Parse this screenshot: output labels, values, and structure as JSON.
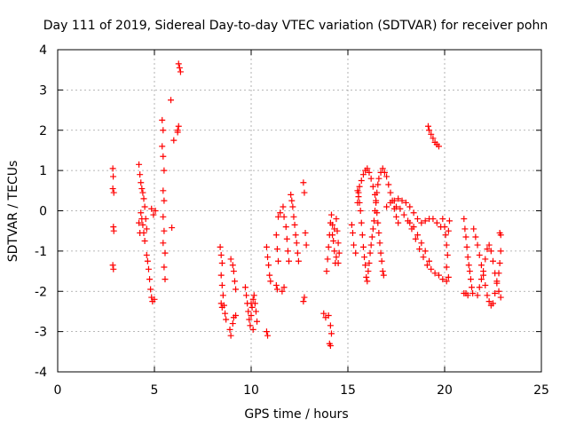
{
  "chart_data": {
    "type": "scatter",
    "title": "Day 111 of 2019, Sidereal Day-to-day VTEC variation (SDTVAR) for receiver pohn",
    "xlabel": "GPS time / hours",
    "ylabel": "SDTVAR / TECUs",
    "xlim": [
      0,
      25
    ],
    "ylim": [
      -4,
      4
    ],
    "xticks": [
      0,
      5,
      10,
      15,
      20,
      25
    ],
    "yticks": [
      -4,
      -3,
      -2,
      -1,
      0,
      1,
      2,
      3,
      4
    ],
    "grid": true,
    "marker": "+",
    "color": "#ff0000",
    "series": [
      {
        "name": "SDTVAR",
        "points": [
          [
            2.85,
            1.05
          ],
          [
            2.87,
            0.85
          ],
          [
            2.85,
            0.55
          ],
          [
            2.9,
            0.45
          ],
          [
            2.88,
            -0.4
          ],
          [
            2.9,
            -0.5
          ],
          [
            2.85,
            -1.35
          ],
          [
            2.88,
            -1.45
          ],
          [
            4.2,
            1.15
          ],
          [
            4.25,
            0.9
          ],
          [
            4.3,
            0.7
          ],
          [
            4.35,
            0.55
          ],
          [
            4.4,
            0.45
          ],
          [
            4.45,
            0.3
          ],
          [
            4.5,
            0.1
          ],
          [
            4.3,
            -0.05
          ],
          [
            4.35,
            -0.2
          ],
          [
            4.4,
            -0.35
          ],
          [
            4.45,
            -0.55
          ],
          [
            4.5,
            -0.75
          ],
          [
            4.6,
            -1.1
          ],
          [
            4.65,
            -1.25
          ],
          [
            4.7,
            -1.45
          ],
          [
            4.75,
            -1.7
          ],
          [
            4.8,
            -1.95
          ],
          [
            4.85,
            -2.15
          ],
          [
            4.9,
            -2.25
          ],
          [
            5.0,
            -2.2
          ],
          [
            4.85,
            0.05
          ],
          [
            4.95,
            -0.1
          ],
          [
            5.05,
            0.0
          ],
          [
            4.55,
            -0.2
          ],
          [
            4.6,
            -0.45
          ],
          [
            4.2,
            -0.3
          ],
          [
            4.25,
            -0.55
          ],
          [
            5.4,
            2.25
          ],
          [
            5.45,
            2.0
          ],
          [
            5.4,
            1.6
          ],
          [
            5.45,
            1.35
          ],
          [
            5.5,
            1.0
          ],
          [
            5.45,
            0.5
          ],
          [
            5.5,
            0.25
          ],
          [
            5.45,
            -0.15
          ],
          [
            5.5,
            -0.5
          ],
          [
            5.45,
            -0.8
          ],
          [
            5.55,
            -1.05
          ],
          [
            5.5,
            -1.4
          ],
          [
            5.55,
            -1.7
          ],
          [
            5.85,
            2.75
          ],
          [
            6.0,
            1.75
          ],
          [
            6.2,
            2.0
          ],
          [
            6.25,
            2.1
          ],
          [
            6.2,
            1.95
          ],
          [
            5.9,
            -0.42
          ],
          [
            6.25,
            3.65
          ],
          [
            6.3,
            3.55
          ],
          [
            6.35,
            3.45
          ],
          [
            8.4,
            -0.9
          ],
          [
            8.45,
            -1.1
          ],
          [
            8.5,
            -1.3
          ],
          [
            8.45,
            -1.6
          ],
          [
            8.5,
            -1.85
          ],
          [
            8.55,
            -2.1
          ],
          [
            8.6,
            -2.35
          ],
          [
            8.65,
            -2.55
          ],
          [
            8.7,
            -2.7
          ],
          [
            8.45,
            -2.3
          ],
          [
            8.5,
            -2.4
          ],
          [
            8.95,
            -1.2
          ],
          [
            9.05,
            -1.35
          ],
          [
            9.1,
            -1.5
          ],
          [
            9.15,
            -1.75
          ],
          [
            9.2,
            -1.95
          ],
          [
            8.9,
            -2.95
          ],
          [
            8.95,
            -3.1
          ],
          [
            9.05,
            -2.8
          ],
          [
            9.1,
            -2.65
          ],
          [
            9.2,
            -2.6
          ],
          [
            9.7,
            -1.9
          ],
          [
            9.75,
            -2.1
          ],
          [
            9.8,
            -2.3
          ],
          [
            9.85,
            -2.5
          ],
          [
            9.9,
            -2.7
          ],
          [
            9.95,
            -2.85
          ],
          [
            10.0,
            -2.6
          ],
          [
            10.05,
            -2.4
          ],
          [
            10.1,
            -2.2
          ],
          [
            10.15,
            -2.1
          ],
          [
            10.2,
            -2.3
          ],
          [
            10.25,
            -2.5
          ],
          [
            10.3,
            -2.75
          ],
          [
            10.1,
            -2.95
          ],
          [
            10.0,
            -2.3
          ],
          [
            10.8,
            -3.0
          ],
          [
            10.85,
            -3.1
          ],
          [
            10.8,
            -0.9
          ],
          [
            10.85,
            -1.15
          ],
          [
            10.9,
            -1.35
          ],
          [
            10.95,
            -1.6
          ],
          [
            11.0,
            -1.75
          ],
          [
            11.3,
            -0.6
          ],
          [
            11.35,
            -0.95
          ],
          [
            11.4,
            -1.25
          ],
          [
            11.3,
            -1.85
          ],
          [
            11.35,
            -1.95
          ],
          [
            11.6,
            -2.0
          ],
          [
            11.7,
            -1.9
          ],
          [
            11.4,
            -0.15
          ],
          [
            11.5,
            -0.05
          ],
          [
            11.65,
            0.1
          ],
          [
            11.7,
            -0.15
          ],
          [
            11.8,
            -0.4
          ],
          [
            11.85,
            -0.7
          ],
          [
            11.9,
            -1.0
          ],
          [
            11.95,
            -1.25
          ],
          [
            12.05,
            0.4
          ],
          [
            12.1,
            0.25
          ],
          [
            12.15,
            0.1
          ],
          [
            12.2,
            -0.15
          ],
          [
            12.25,
            -0.35
          ],
          [
            12.3,
            -0.6
          ],
          [
            12.35,
            -0.8
          ],
          [
            12.4,
            -1.05
          ],
          [
            12.45,
            -1.25
          ],
          [
            12.7,
            0.7
          ],
          [
            12.75,
            0.45
          ],
          [
            12.8,
            -0.55
          ],
          [
            12.85,
            -0.85
          ],
          [
            12.7,
            -2.25
          ],
          [
            12.75,
            -2.15
          ],
          [
            13.75,
            -2.55
          ],
          [
            13.85,
            -2.65
          ],
          [
            14.0,
            -2.6
          ],
          [
            14.1,
            -2.85
          ],
          [
            14.15,
            -3.05
          ],
          [
            14.05,
            -3.3
          ],
          [
            14.1,
            -3.35
          ],
          [
            13.9,
            -1.5
          ],
          [
            13.95,
            -1.2
          ],
          [
            14.0,
            -0.9
          ],
          [
            14.05,
            -0.6
          ],
          [
            14.1,
            -0.3
          ],
          [
            14.15,
            -0.1
          ],
          [
            14.2,
            -0.35
          ],
          [
            14.25,
            -0.75
          ],
          [
            14.3,
            -1.0
          ],
          [
            14.35,
            -1.3
          ],
          [
            14.4,
            -0.2
          ],
          [
            14.45,
            -0.5
          ],
          [
            14.5,
            -0.8
          ],
          [
            14.55,
            -1.05
          ],
          [
            14.5,
            -1.3
          ],
          [
            14.4,
            -1.15
          ],
          [
            14.3,
            -0.45
          ],
          [
            14.2,
            -0.6
          ],
          [
            15.2,
            -0.35
          ],
          [
            15.25,
            -0.55
          ],
          [
            15.3,
            -0.85
          ],
          [
            15.4,
            -1.05
          ],
          [
            15.5,
            0.5
          ],
          [
            15.55,
            0.35
          ],
          [
            15.6,
            0.2
          ],
          [
            15.65,
            0.0
          ],
          [
            15.7,
            -0.3
          ],
          [
            15.75,
            -0.6
          ],
          [
            15.8,
            -0.9
          ],
          [
            15.85,
            -1.15
          ],
          [
            15.9,
            -1.35
          ],
          [
            15.95,
            -1.65
          ],
          [
            16.0,
            -1.75
          ],
          [
            16.05,
            -1.5
          ],
          [
            16.1,
            -1.3
          ],
          [
            16.15,
            -1.05
          ],
          [
            16.2,
            -0.85
          ],
          [
            16.25,
            -0.65
          ],
          [
            16.3,
            -0.45
          ],
          [
            16.35,
            -0.25
          ],
          [
            16.4,
            0.0
          ],
          [
            16.45,
            0.25
          ],
          [
            16.5,
            0.45
          ],
          [
            16.55,
            0.65
          ],
          [
            16.6,
            0.8
          ],
          [
            16.7,
            0.95
          ],
          [
            16.8,
            1.05
          ],
          [
            16.9,
            0.95
          ],
          [
            17.0,
            0.85
          ],
          [
            17.1,
            0.65
          ],
          [
            17.2,
            0.45
          ],
          [
            17.3,
            0.25
          ],
          [
            17.4,
            0.05
          ],
          [
            17.5,
            -0.15
          ],
          [
            17.6,
            -0.3
          ],
          [
            15.5,
            0.2
          ],
          [
            15.55,
            0.45
          ],
          [
            15.6,
            0.6
          ],
          [
            15.7,
            0.75
          ],
          [
            15.8,
            0.9
          ],
          [
            15.9,
            1.0
          ],
          [
            16.0,
            1.05
          ],
          [
            16.1,
            0.95
          ],
          [
            16.2,
            0.8
          ],
          [
            16.3,
            0.6
          ],
          [
            16.4,
            0.4
          ],
          [
            16.45,
            0.2
          ],
          [
            16.5,
            -0.05
          ],
          [
            16.55,
            -0.3
          ],
          [
            16.6,
            -0.55
          ],
          [
            16.65,
            -0.8
          ],
          [
            16.7,
            -1.05
          ],
          [
            16.75,
            -1.25
          ],
          [
            16.8,
            -1.5
          ],
          [
            16.85,
            -1.6
          ],
          [
            17.0,
            0.1
          ],
          [
            17.2,
            0.2
          ],
          [
            17.4,
            0.25
          ],
          [
            17.6,
            0.3
          ],
          [
            17.8,
            0.25
          ],
          [
            18.0,
            0.2
          ],
          [
            18.2,
            0.1
          ],
          [
            18.4,
            -0.05
          ],
          [
            18.6,
            -0.2
          ],
          [
            18.8,
            -0.3
          ],
          [
            19.0,
            -0.25
          ],
          [
            19.2,
            -0.2
          ],
          [
            19.4,
            -0.2
          ],
          [
            19.6,
            -0.3
          ],
          [
            19.8,
            -0.4
          ],
          [
            17.5,
            0.1
          ],
          [
            17.7,
            0.05
          ],
          [
            17.9,
            -0.1
          ],
          [
            18.1,
            -0.25
          ],
          [
            18.3,
            -0.45
          ],
          [
            18.5,
            -0.7
          ],
          [
            18.7,
            -0.95
          ],
          [
            18.9,
            -1.15
          ],
          [
            19.1,
            -1.35
          ],
          [
            19.3,
            -1.45
          ],
          [
            19.5,
            -1.55
          ],
          [
            19.7,
            -1.6
          ],
          [
            19.9,
            -1.7
          ],
          [
            20.1,
            -1.75
          ],
          [
            20.2,
            -1.65
          ],
          [
            18.2,
            -0.3
          ],
          [
            18.4,
            -0.4
          ],
          [
            18.6,
            -0.6
          ],
          [
            18.8,
            -0.8
          ],
          [
            19.0,
            -1.0
          ],
          [
            19.2,
            -1.25
          ],
          [
            19.15,
            2.1
          ],
          [
            19.2,
            2.0
          ],
          [
            19.3,
            1.9
          ],
          [
            19.4,
            1.8
          ],
          [
            19.5,
            1.7
          ],
          [
            19.6,
            1.65
          ],
          [
            19.7,
            1.6
          ],
          [
            19.9,
            -0.2
          ],
          [
            20.0,
            -0.4
          ],
          [
            20.05,
            -0.6
          ],
          [
            20.1,
            -0.85
          ],
          [
            20.15,
            -1.1
          ],
          [
            20.2,
            -0.5
          ],
          [
            20.25,
            -0.25
          ],
          [
            20.1,
            -1.4
          ],
          [
            21.0,
            -0.2
          ],
          [
            21.05,
            -0.45
          ],
          [
            21.1,
            -0.65
          ],
          [
            21.15,
            -0.9
          ],
          [
            21.2,
            -1.15
          ],
          [
            21.25,
            -1.35
          ],
          [
            21.3,
            -1.5
          ],
          [
            21.35,
            -1.7
          ],
          [
            21.4,
            -1.9
          ],
          [
            21.45,
            -2.05
          ],
          [
            21.2,
            -2.1
          ],
          [
            21.1,
            -2.05
          ],
          [
            21.0,
            -2.05
          ],
          [
            21.5,
            -0.45
          ],
          [
            21.6,
            -0.65
          ],
          [
            21.7,
            -0.85
          ],
          [
            21.8,
            -1.1
          ],
          [
            21.9,
            -1.35
          ],
          [
            22.0,
            -1.6
          ],
          [
            22.1,
            -1.85
          ],
          [
            22.2,
            -2.1
          ],
          [
            22.3,
            -2.25
          ],
          [
            22.4,
            -2.35
          ],
          [
            22.5,
            -2.3
          ],
          [
            22.6,
            -2.05
          ],
          [
            22.7,
            -1.8
          ],
          [
            22.8,
            -1.55
          ],
          [
            22.85,
            -1.3
          ],
          [
            22.9,
            -1.0
          ],
          [
            21.7,
            -2.1
          ],
          [
            21.8,
            -1.9
          ],
          [
            21.9,
            -1.7
          ],
          [
            22.0,
            -1.5
          ],
          [
            22.1,
            -1.2
          ],
          [
            22.2,
            -0.95
          ],
          [
            22.3,
            -0.85
          ],
          [
            22.4,
            -1.0
          ],
          [
            22.5,
            -1.25
          ],
          [
            22.6,
            -1.55
          ],
          [
            22.7,
            -1.75
          ],
          [
            22.8,
            -2.0
          ],
          [
            22.9,
            -2.15
          ],
          [
            22.85,
            -0.55
          ],
          [
            22.9,
            -0.6
          ]
        ]
      }
    ]
  }
}
